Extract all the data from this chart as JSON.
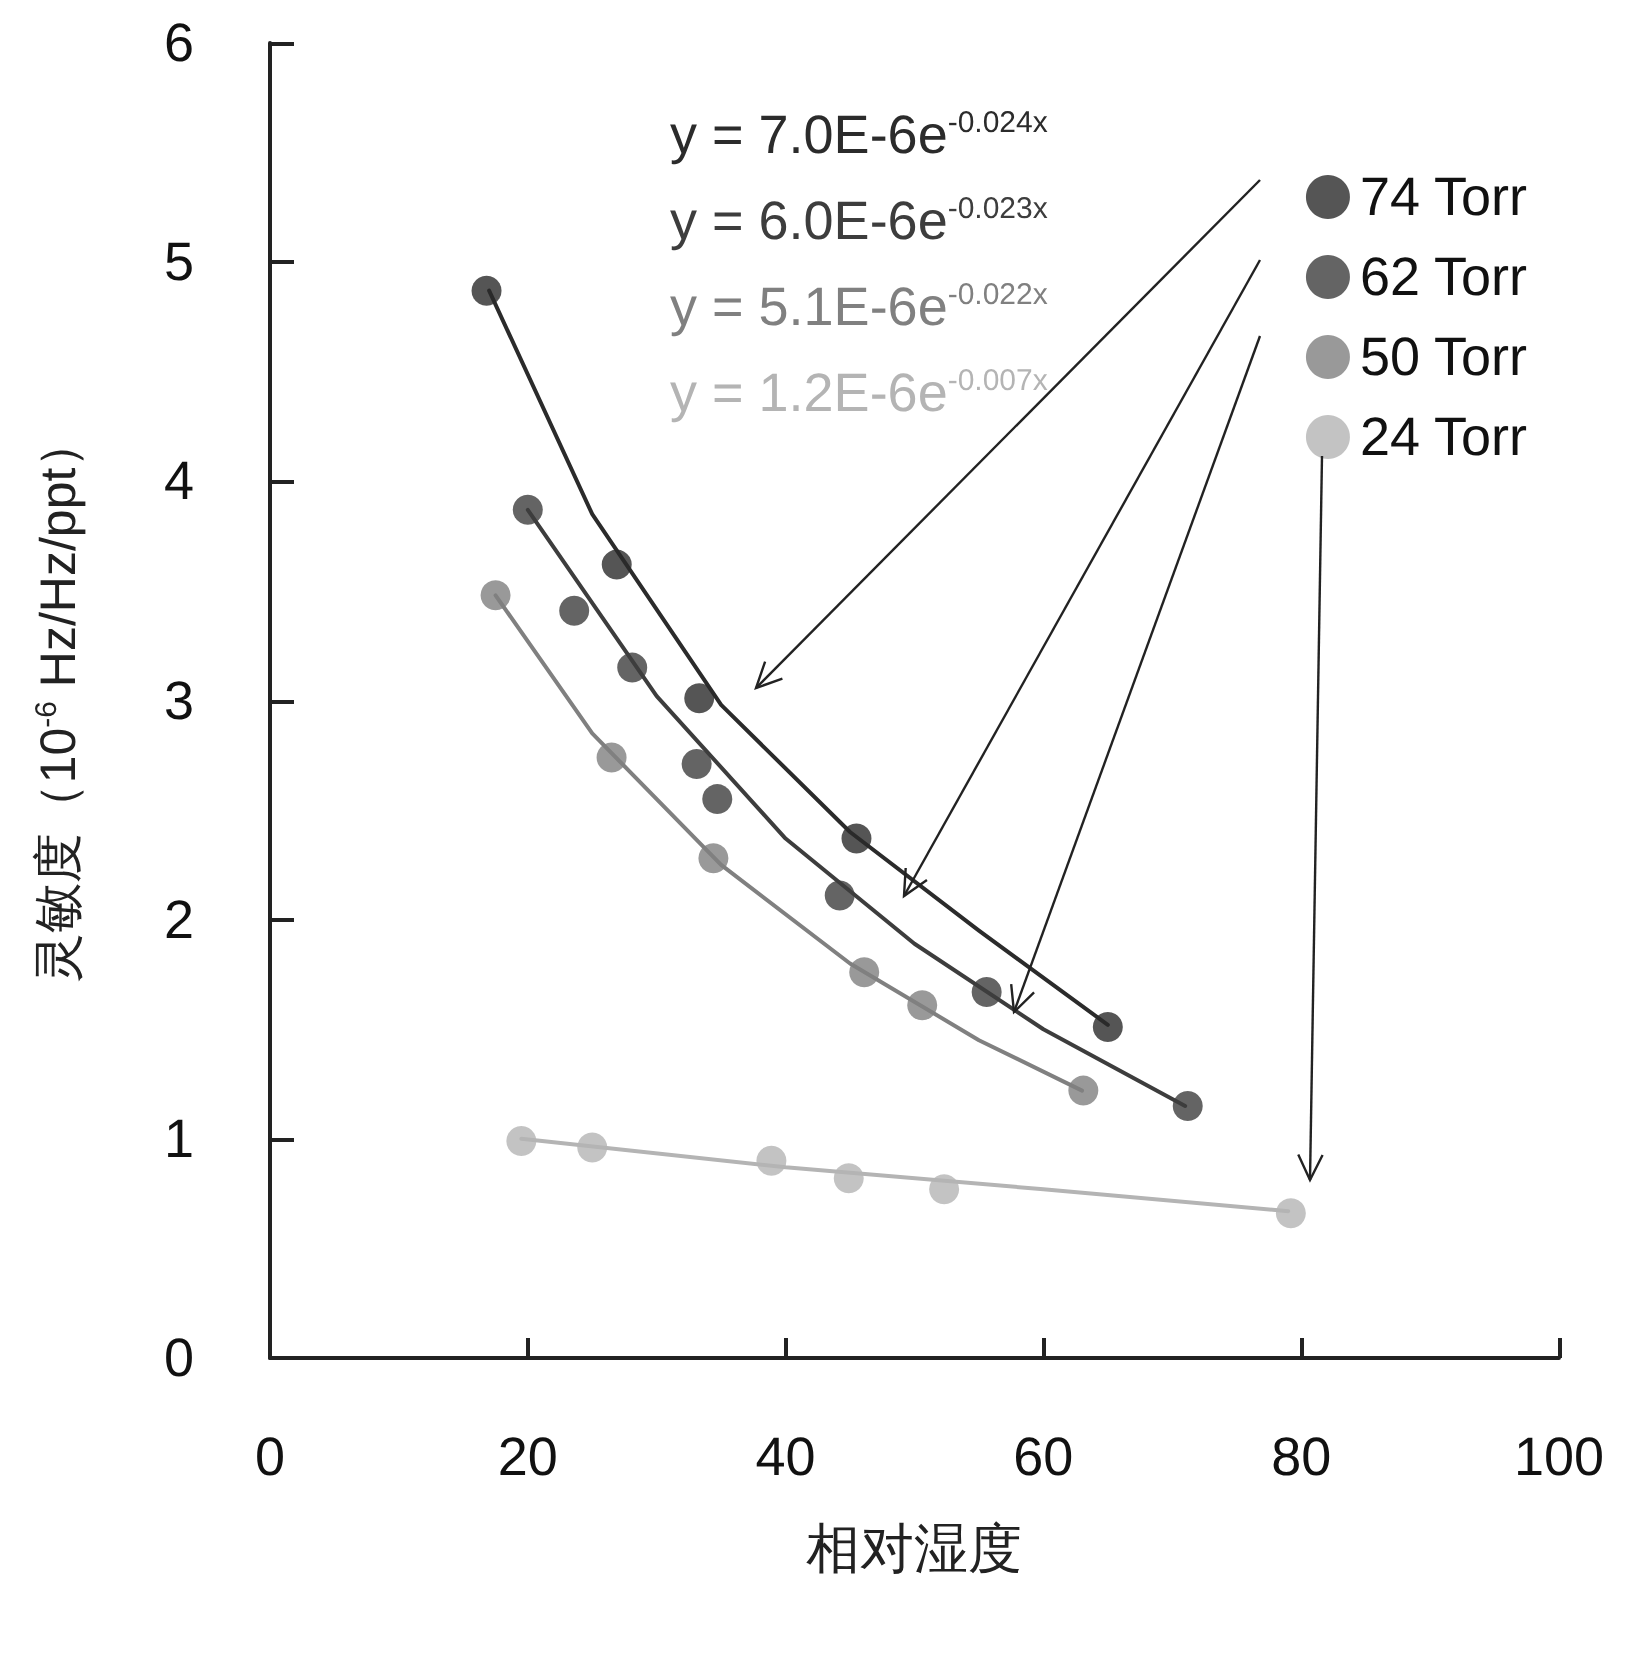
{
  "chart_data": {
    "type": "scatter",
    "xlabel": "相对湿度",
    "ylabel": "灵敏度（10$^{-6}$ Hz/Hz/ppt）",
    "xlim": [
      0,
      100
    ],
    "xticks": [
      0,
      20,
      40,
      60,
      80,
      100
    ],
    "ylim": [
      0,
      6
    ],
    "yticks": [
      0,
      1,
      2,
      3,
      4,
      5,
      6
    ],
    "grid": false,
    "legend": "top right",
    "marker": "circle",
    "line_style": "solid",
    "annotations": [
      "y = 7.0E-6e$^{-0.024x}$",
      "y = 6.0E-6e$^{-0.023x}$",
      "y = 5.1E-6e$^{-0.022x}$",
      "y = 1.2E-6e$^{-0.007x}$"
    ],
    "series": [
      {
        "name": "74 Torr",
        "color": "#2b2b2b",
        "x": [
          16.8,
          26.9,
          33.3,
          45.5,
          65.0
        ],
        "values": [
          4.87,
          3.62,
          3.01,
          2.37,
          1.51
        ]
      },
      {
        "name": "62 Torr",
        "color": "#3d3d3d",
        "x": [
          20.0,
          23.6,
          28.1,
          33.1,
          34.7,
          44.2,
          55.6,
          71.2
        ],
        "values": [
          3.87,
          3.41,
          3.15,
          2.71,
          2.55,
          2.11,
          1.67,
          1.15
        ]
      },
      {
        "name": "50 Torr",
        "color": "#808080",
        "x": [
          17.5,
          26.5,
          34.4,
          46.1,
          50.6,
          63.1
        ],
        "values": [
          3.48,
          2.74,
          2.28,
          1.76,
          1.61,
          1.22
        ]
      },
      {
        "name": "24 Torr",
        "color": "#b4b4b4",
        "x": [
          19.5,
          25.0,
          38.9,
          44.9,
          52.3,
          79.2
        ],
        "values": [
          0.99,
          0.96,
          0.9,
          0.82,
          0.77,
          0.66
        ]
      },
      {
        "type": "line",
        "color": "#2b2b2b",
        "marker": "none",
        "x": [
          17,
          25,
          35,
          45,
          55,
          65
        ],
        "values": [
          4.87,
          3.85,
          2.98,
          2.4,
          1.95,
          1.52
        ]
      },
      {
        "type": "line",
        "color": "#3d3d3d",
        "marker": "none",
        "x": [
          20,
          30,
          40,
          50,
          60,
          71
        ],
        "values": [
          3.87,
          3.02,
          2.37,
          1.89,
          1.5,
          1.15
        ]
      },
      {
        "type": "line",
        "color": "#808080",
        "marker": "none",
        "x": [
          17.5,
          25,
          35,
          45,
          55,
          63
        ],
        "values": [
          3.48,
          2.85,
          2.25,
          1.8,
          1.45,
          1.22
        ]
      },
      {
        "type": "line",
        "color": "#b4b4b4",
        "marker": "none",
        "x": [
          19.5,
          40,
          60,
          79
        ],
        "values": [
          1.0,
          0.87,
          0.77,
          0.67
        ]
      }
    ]
  }
}
